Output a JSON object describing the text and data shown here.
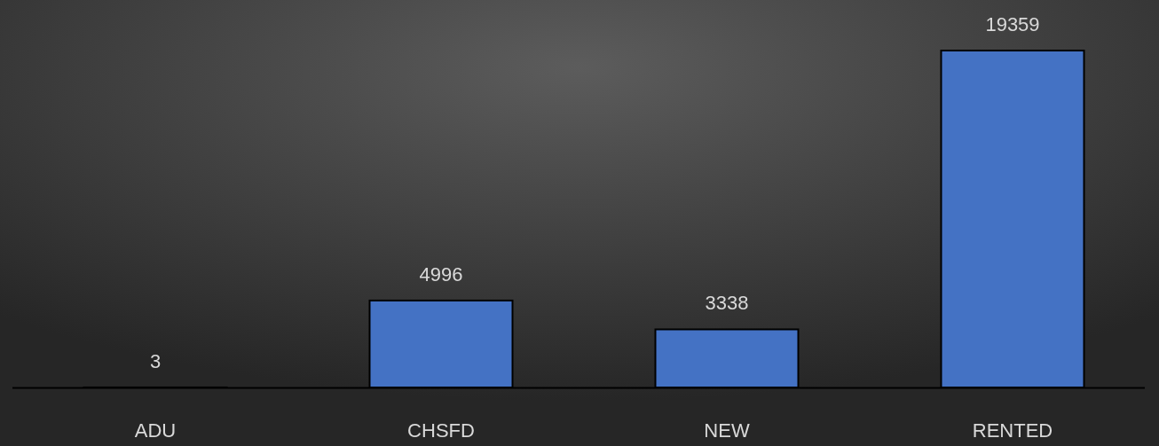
{
  "chart_data": {
    "type": "bar",
    "categories": [
      "ADU",
      "CHSFD",
      "NEW",
      "RENTED"
    ],
    "values": [
      3,
      4996,
      3338,
      19359
    ],
    "color": "#4472c4",
    "data_labels": true
  }
}
